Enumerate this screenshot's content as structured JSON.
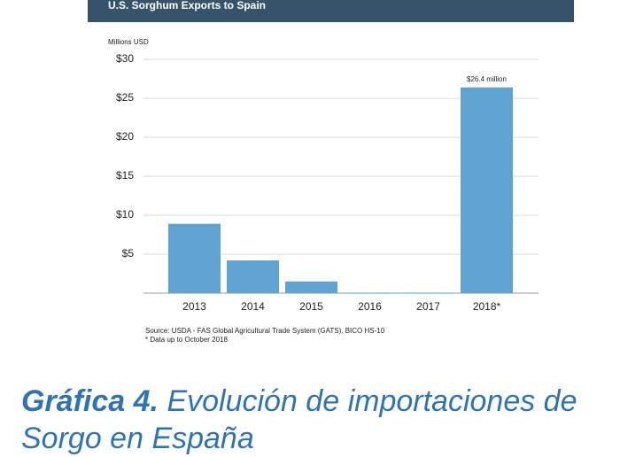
{
  "chart_data": {
    "type": "bar",
    "title": "U.S. Sorghum Exports to Spain",
    "y_label": "Millions USD",
    "categories": [
      "2013",
      "2014",
      "2015",
      "2016",
      "2017",
      "2018*"
    ],
    "values": [
      8.9,
      4.2,
      1.5,
      0.05,
      0.05,
      26.4
    ],
    "value_labels": [
      null,
      null,
      null,
      null,
      null,
      "$26.4 million"
    ],
    "color": "#5fa3d3",
    "ylim": [
      0,
      30
    ],
    "yticks": [
      {
        "value": 5,
        "label": "$5"
      },
      {
        "value": 10,
        "label": "$10"
      },
      {
        "value": 15,
        "label": "$15"
      },
      {
        "value": 20,
        "label": "$20"
      },
      {
        "value": 25,
        "label": "$25"
      },
      {
        "value": 30,
        "label": "$30"
      }
    ],
    "grid": true,
    "notes": [
      "Source: USDA - FAS  Global Agricultural Trade System (GATS), BICO HS-10",
      "* Data up to October 2018"
    ]
  },
  "caption": {
    "label": "Gráfica 4.",
    "text": "Evolución de importaciones de Sorgo en España"
  }
}
